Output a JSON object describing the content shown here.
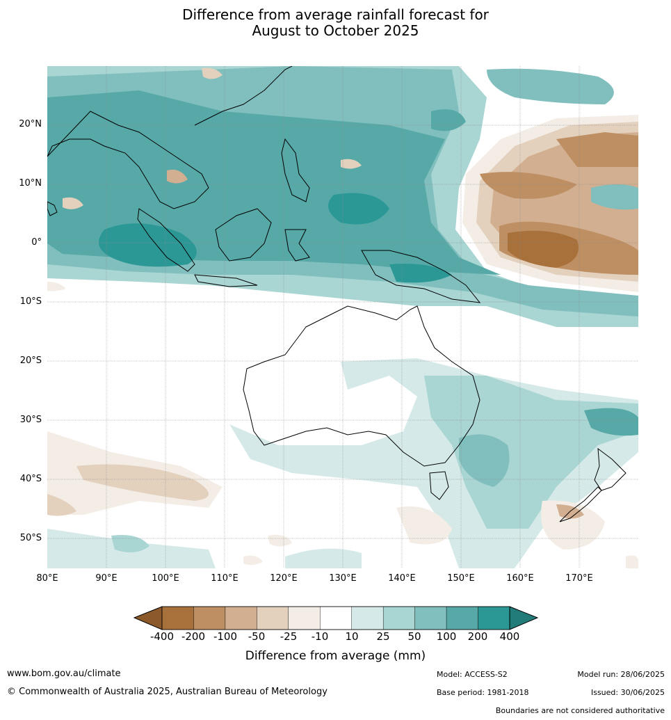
{
  "title": {
    "line1": "Difference from average rainfall forecast for",
    "line2": "August to October 2025"
  },
  "map": {
    "extent": {
      "lon_min": 80,
      "lon_max": 180,
      "lat_min": -55,
      "lat_max": 30
    },
    "lat_ticks": [
      "20°N",
      "10°N",
      "0°",
      "10°S",
      "20°S",
      "30°S",
      "40°S",
      "50°S"
    ],
    "lon_ticks": [
      "80°E",
      "90°E",
      "100°E",
      "110°E",
      "120°E",
      "130°E",
      "140°E",
      "150°E",
      "160°E",
      "170°E"
    ],
    "gridlines": true
  },
  "colorbar": {
    "title": "Difference from average (mm)",
    "tick_labels": [
      "-400",
      "-200",
      "-100",
      "-50",
      "-25",
      "-10",
      "10",
      "25",
      "50",
      "100",
      "200",
      "400"
    ],
    "colors": [
      "#a8703a",
      "#be8f63",
      "#d2af90",
      "#e3d0bd",
      "#f3ede6",
      "#ffffff",
      "#d5eae8",
      "#a9d5d3",
      "#80bfbe",
      "#57a9a8",
      "#2c9896"
    ],
    "extend_low_color": "#8c5a2a",
    "extend_high_color": "#217b78"
  },
  "footer": {
    "url": "www.bom.gov.au/climate",
    "copyright": "© Commonwealth of Australia 2025, Australian Bureau of Meteorology",
    "model": "Model: ACCESS-S2",
    "base_period": "Base period: 1981-2018",
    "model_run": "Model run: 28/06/2025",
    "issued": "Issued: 30/06/2025",
    "disclaimer": "Boundaries are not considered authoritative"
  }
}
